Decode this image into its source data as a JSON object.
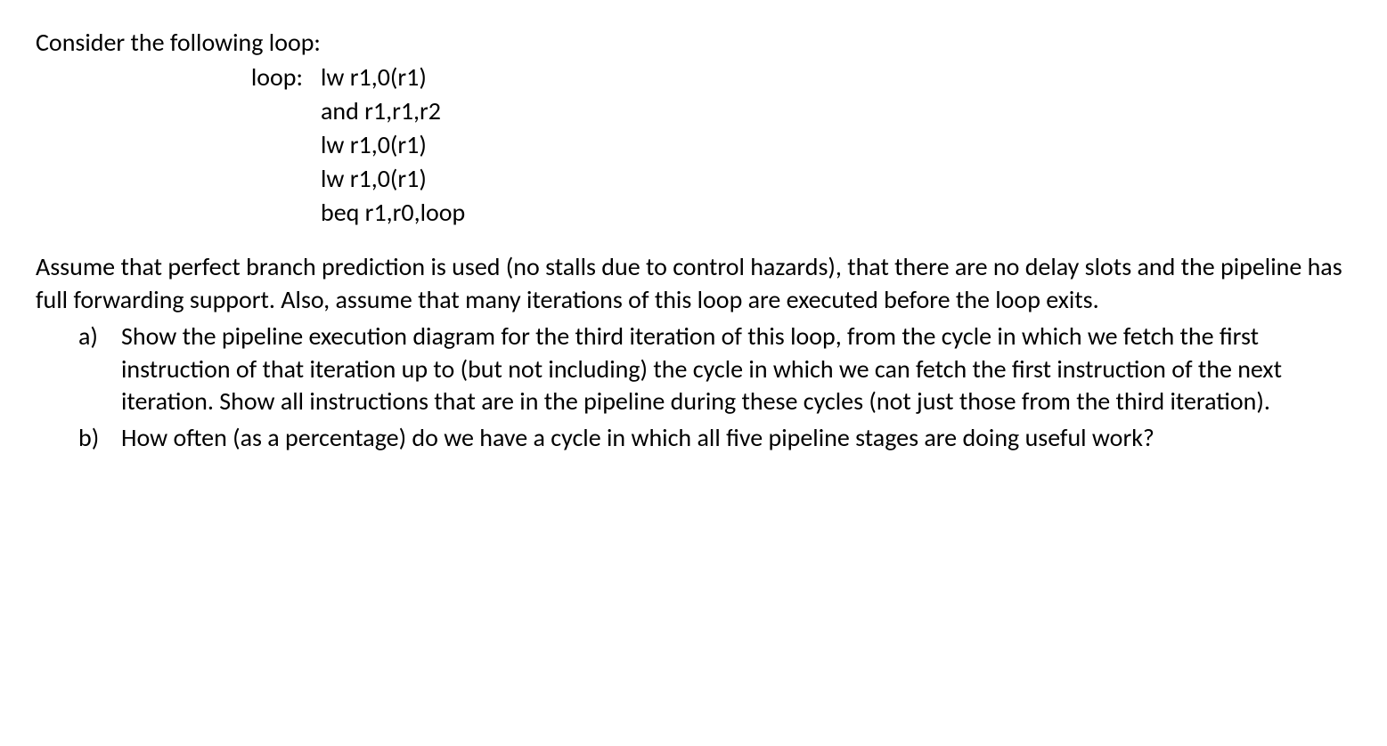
{
  "intro": "Consider the following loop:",
  "code": {
    "label": "loop:",
    "lines": [
      "lw r1,0(r1)",
      "and r1,r1,r2",
      "lw r1,0(r1)",
      "lw r1,0(r1)",
      "beq r1,r0,loop"
    ]
  },
  "assumption": "Assume that perfect branch prediction is used (no stalls due to control hazards), that there are no delay slots and the pipeline has full forwarding support.  Also, assume that many iterations of this loop are executed before the loop exits.",
  "questions": [
    {
      "marker": "a)",
      "text": "Show the pipeline execution diagram for the third iteration of this loop, from the cycle in which we fetch the first instruction of that iteration up to (but not including) the cycle in which we can fetch the first instruction of the next iteration.  Show all instructions that are in the pipeline during these cycles (not just those from the third iteration)."
    },
    {
      "marker": "b)",
      "text": "How often (as a percentage) do we have a cycle in which all five pipeline stages are doing useful work?"
    }
  ]
}
